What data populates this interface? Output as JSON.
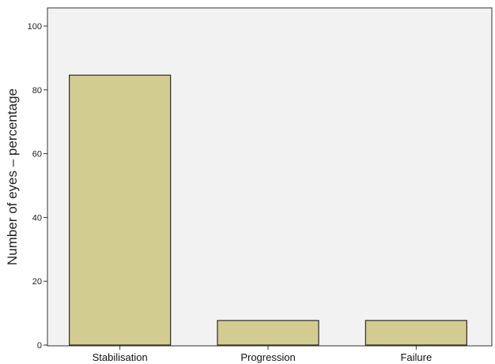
{
  "chart_data": {
    "type": "bar",
    "title": "",
    "xlabel": "",
    "ylabel": "Number of eyes – percentage",
    "categories": [
      "Stabilisation",
      "Progression",
      "Failure"
    ],
    "values": [
      84.6,
      7.7,
      7.7
    ],
    "ylim": [
      0,
      100
    ],
    "yticks": [
      0,
      20,
      40,
      60,
      80,
      100
    ],
    "grid": false,
    "legend": "none",
    "colors": {
      "bar_fill": "#d2cc90",
      "bar_stroke": "#2b2b2b",
      "plot_background": "#f2f2f2",
      "axis": "#333333"
    }
  }
}
